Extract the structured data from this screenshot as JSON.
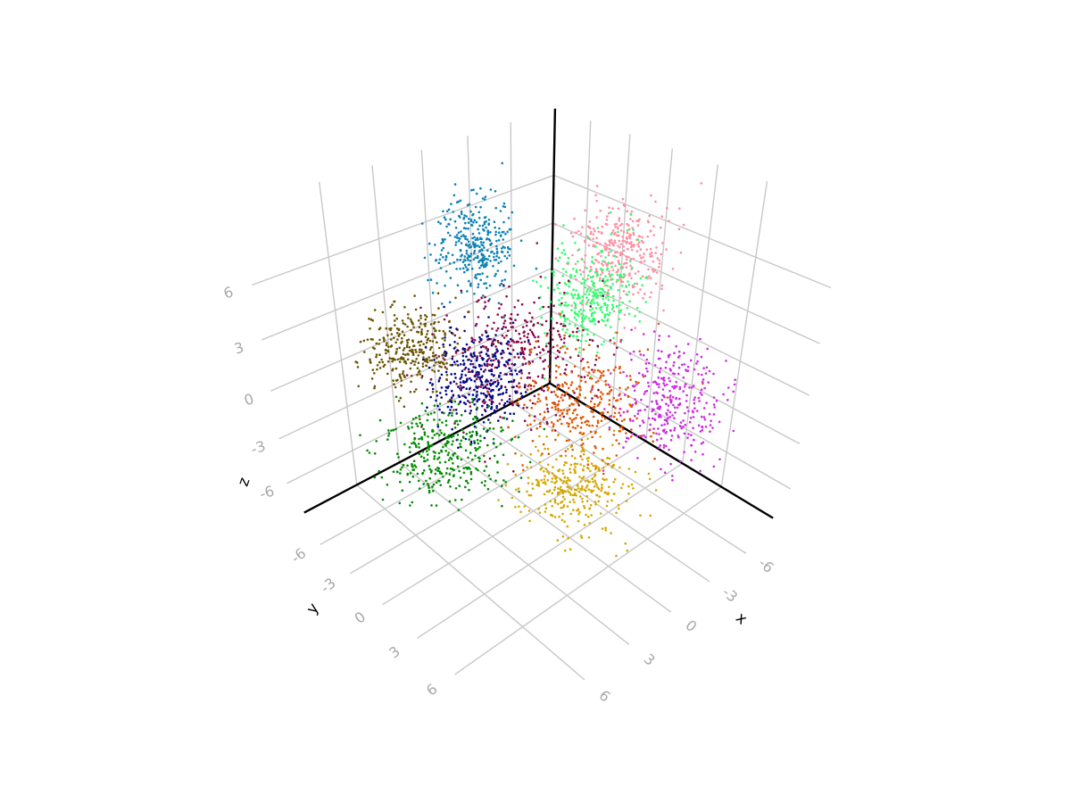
{
  "chart_data": {
    "type": "scatter3d",
    "grid": true,
    "legend": "none",
    "axes": {
      "x": {
        "label": "x",
        "lim": [
          -9.3,
          9.5
        ],
        "ticks": [
          -6,
          -3,
          0,
          3,
          6
        ],
        "tick_labels": [
          "-6",
          "-3",
          "0",
          "3",
          "6"
        ]
      },
      "y": {
        "label": "y",
        "lim": [
          -8.9,
          9.7
        ],
        "ticks": [
          -6,
          -3,
          0,
          3,
          6
        ],
        "tick_labels": [
          "-6",
          "-3",
          "0",
          "3",
          "6"
        ]
      },
      "z": {
        "label": "z",
        "lim": [
          -8.5,
          9.9
        ],
        "ticks": [
          -6,
          -3,
          0,
          3,
          6
        ],
        "tick_labels": [
          "-6",
          "-3",
          "0",
          "3",
          "6"
        ]
      }
    },
    "series": [
      {
        "color": "#0a82b4",
        "center": [
          -0.45,
          -5.2,
          5.65
        ],
        "spread": [
          1.1,
          1.1,
          1.3
        ],
        "count": 330
      },
      {
        "color": "#ff8ea3",
        "center": [
          -5.66,
          0.2,
          5.47
        ],
        "spread": [
          1.2,
          1.3,
          1.3
        ],
        "count": 330
      },
      {
        "color": "#2eff6a",
        "center": [
          -3.74,
          0.1,
          3.65
        ],
        "spread": [
          1.2,
          1.2,
          1.4
        ],
        "count": 330
      },
      {
        "color": "#8a0a46",
        "center": [
          0.06,
          -1.27,
          1.2
        ],
        "spread": [
          2.0,
          2.0,
          1.6
        ],
        "count": 380
      },
      {
        "color": "#6b5400",
        "center": [
          3.86,
          -5.25,
          1.4
        ],
        "spread": [
          1.2,
          1.1,
          1.1
        ],
        "count": 320
      },
      {
        "color": "#00088c",
        "center": [
          1.98,
          -2.1,
          0.1
        ],
        "spread": [
          1.1,
          1.1,
          1.4
        ],
        "count": 330
      },
      {
        "color": "#008c00",
        "center": [
          4.63,
          -1.78,
          -2.84
        ],
        "spread": [
          1.6,
          1.6,
          1.1
        ],
        "count": 340
      },
      {
        "color": "#e05500",
        "center": [
          -1.3,
          2.1,
          -0.8
        ],
        "spread": [
          1.6,
          1.6,
          1.4
        ],
        "count": 330
      },
      {
        "color": "#cc2ee0",
        "center": [
          -4.58,
          5.36,
          -0.79
        ],
        "spread": [
          1.3,
          1.3,
          1.5
        ],
        "count": 330
      },
      {
        "color": "#d4a800",
        "center": [
          0.43,
          3.56,
          -4.44
        ],
        "spread": [
          1.3,
          1.4,
          1.0
        ],
        "count": 330
      }
    ]
  }
}
